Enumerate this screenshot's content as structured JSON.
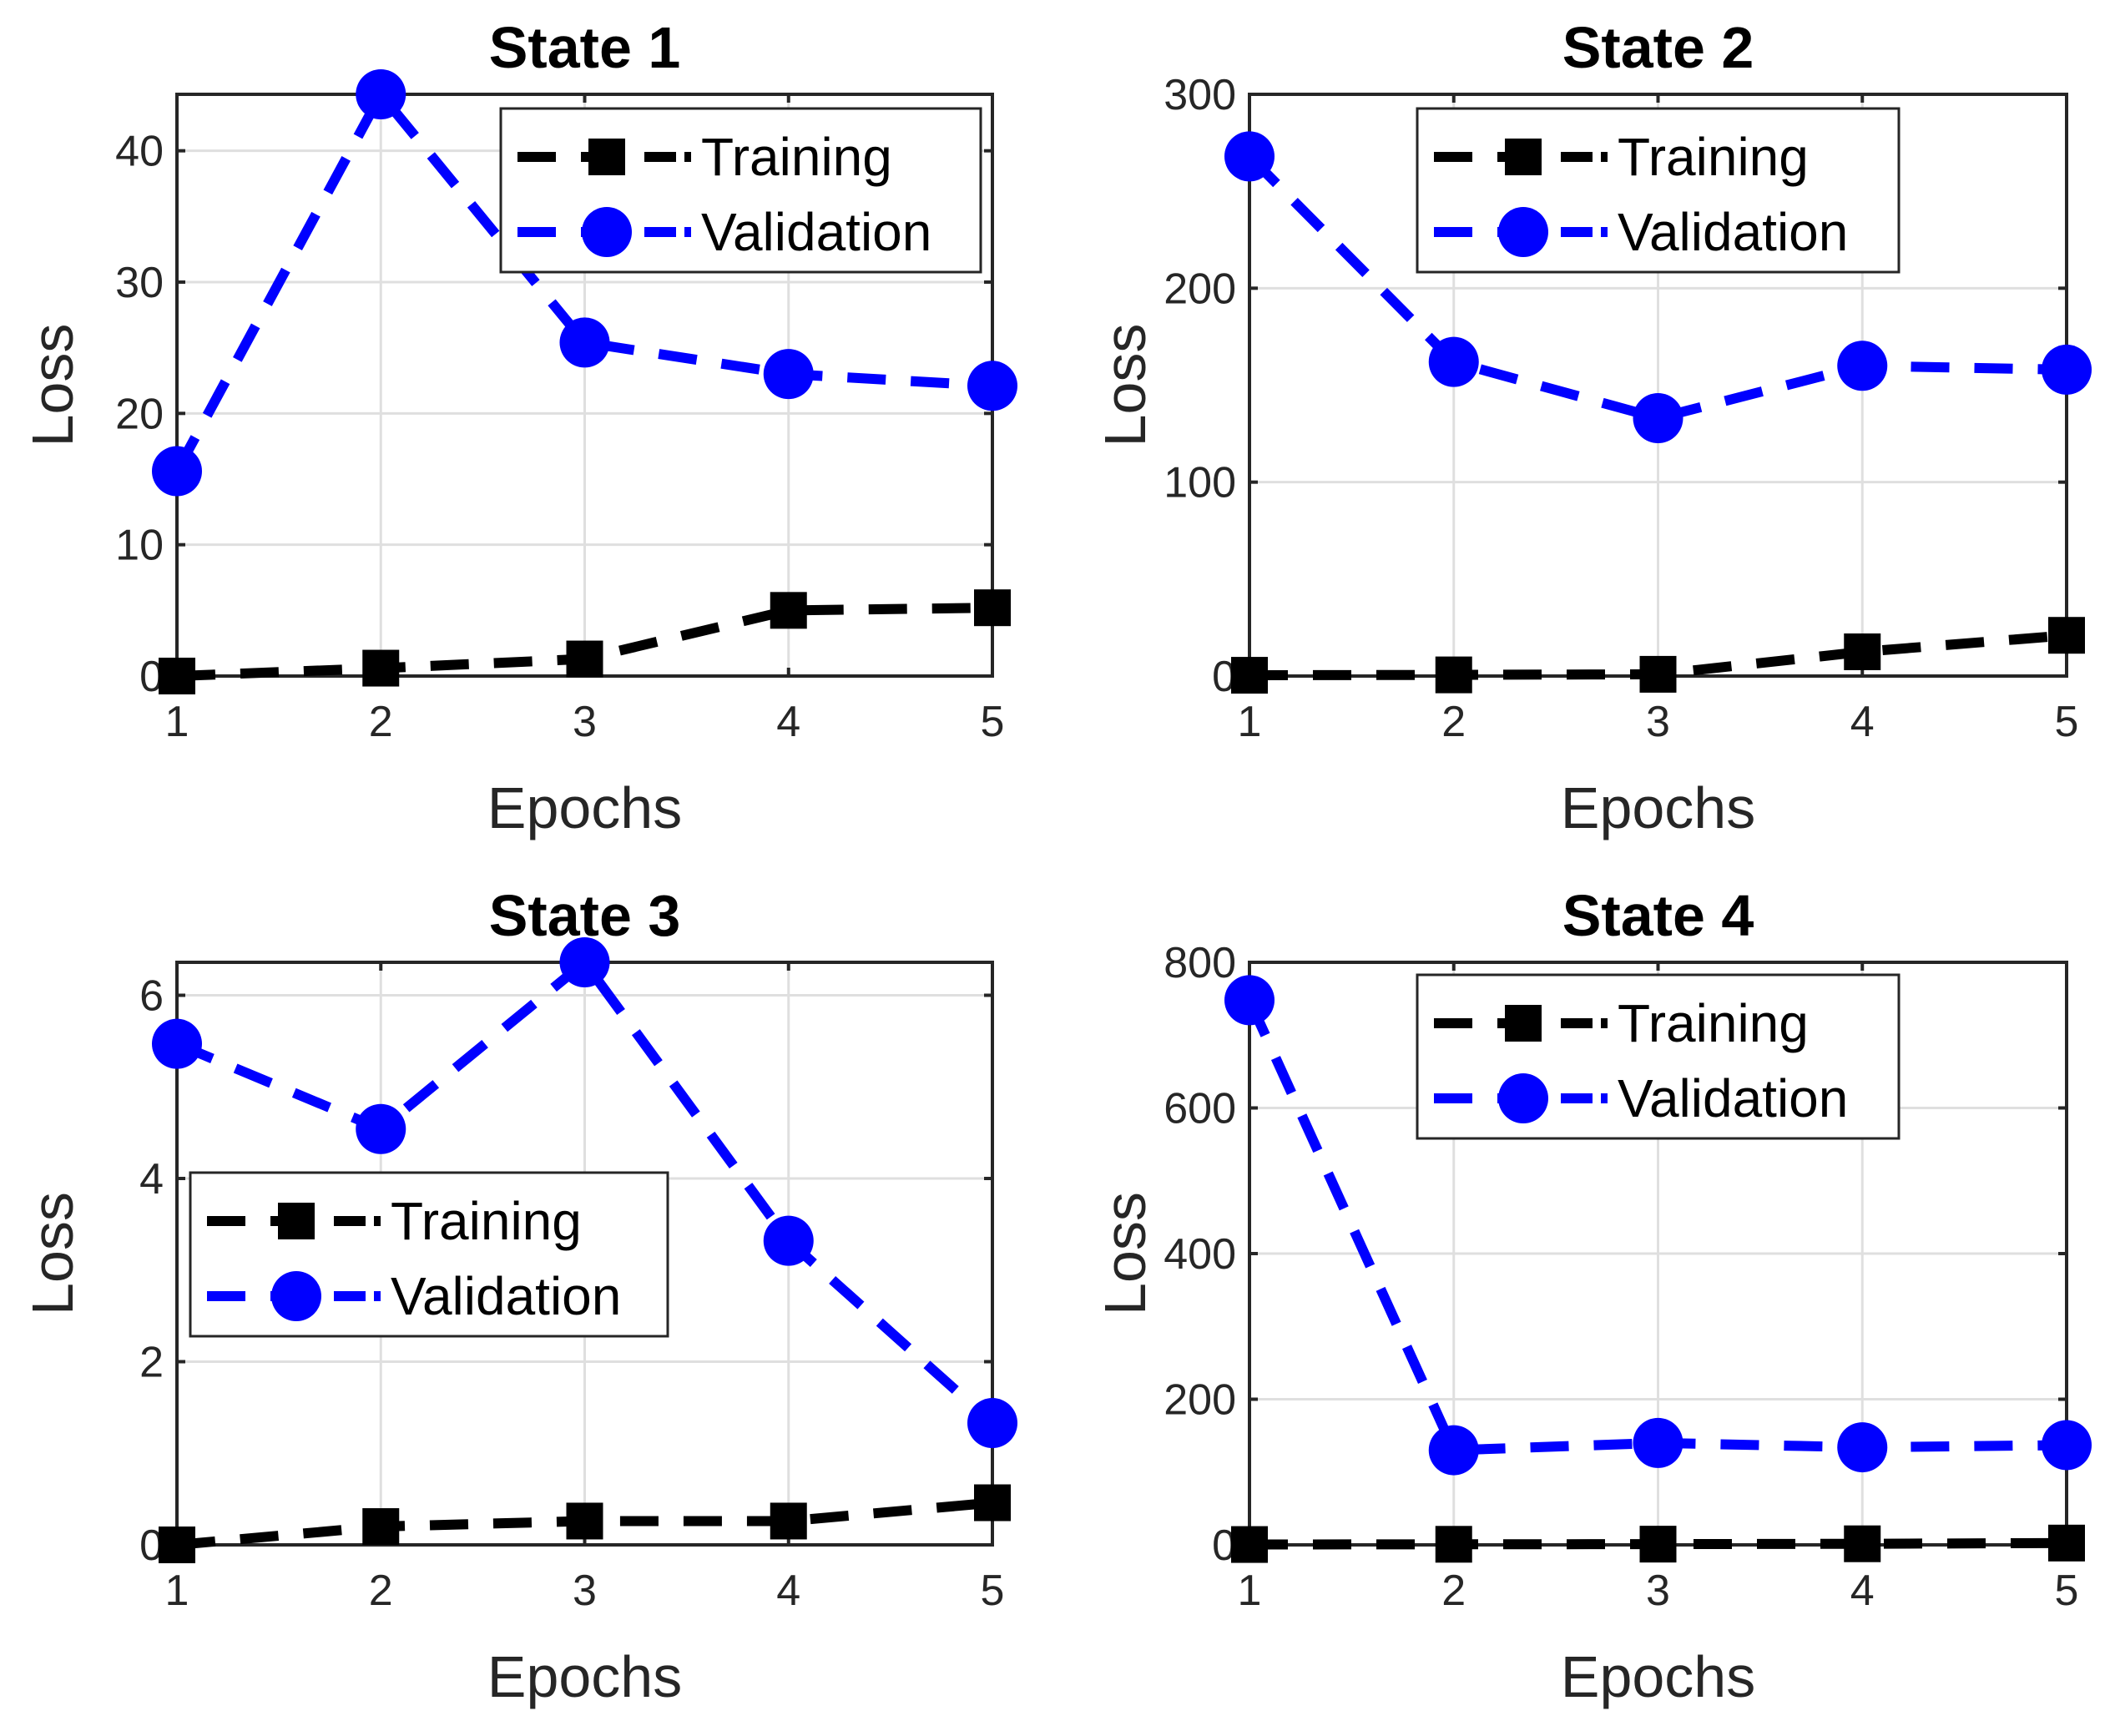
{
  "figure": {
    "panels": [
      "State 1",
      "State 2",
      "State 3",
      "State 4"
    ]
  },
  "chart_data": [
    {
      "type": "line",
      "title": "State 1",
      "xlabel": "Epochs",
      "ylabel": "Loss",
      "x": [
        1,
        2,
        3,
        4,
        5
      ],
      "xlim": [
        1,
        5
      ],
      "ylim": [
        0,
        44.3
      ],
      "xticks": [
        1,
        2,
        3,
        4,
        5
      ],
      "yticks": [
        0,
        10,
        20,
        30,
        40
      ],
      "grid": true,
      "legend_position": "top-right",
      "series": [
        {
          "name": "Training",
          "color": "#000000",
          "marker": "square",
          "values": [
            0.0,
            0.6,
            1.3,
            5.0,
            5.2
          ]
        },
        {
          "name": "Validation",
          "color": "#0000ff",
          "marker": "circle",
          "values": [
            15.6,
            44.3,
            25.4,
            23.0,
            22.1
          ]
        }
      ]
    },
    {
      "type": "line",
      "title": "State 2",
      "xlabel": "Epochs",
      "ylabel": "Loss",
      "x": [
        1,
        2,
        3,
        4,
        5
      ],
      "xlim": [
        1,
        5
      ],
      "ylim": [
        0,
        300
      ],
      "xticks": [
        1,
        2,
        3,
        4,
        5
      ],
      "yticks": [
        0,
        100,
        200,
        300
      ],
      "grid": true,
      "legend_position": "top-right",
      "series": [
        {
          "name": "Training",
          "color": "#000000",
          "marker": "square",
          "values": [
            0.4,
            0.6,
            0.9,
            12.5,
            21.0
          ]
        },
        {
          "name": "Validation",
          "color": "#0000ff",
          "marker": "circle",
          "values": [
            268,
            162,
            133,
            160,
            158
          ]
        }
      ]
    },
    {
      "type": "line",
      "title": "State 3",
      "xlabel": "Epochs",
      "ylabel": "Loss",
      "x": [
        1,
        2,
        3,
        4,
        5
      ],
      "xlim": [
        1,
        5
      ],
      "ylim": [
        0,
        6.36
      ],
      "xticks": [
        1,
        2,
        3,
        4,
        5
      ],
      "yticks": [
        0,
        2,
        4,
        6
      ],
      "grid": true,
      "legend_position": "left",
      "series": [
        {
          "name": "Training",
          "color": "#000000",
          "marker": "square",
          "values": [
            0.0,
            0.2,
            0.26,
            0.26,
            0.46
          ]
        },
        {
          "name": "Validation",
          "color": "#0000ff",
          "marker": "circle",
          "values": [
            5.47,
            4.54,
            6.36,
            3.32,
            1.33
          ]
        }
      ]
    },
    {
      "type": "line",
      "title": "State 4",
      "xlabel": "Epochs",
      "ylabel": "Loss",
      "x": [
        1,
        2,
        3,
        4,
        5
      ],
      "xlim": [
        1,
        5
      ],
      "ylim": [
        0,
        800
      ],
      "xticks": [
        1,
        2,
        3,
        4,
        5
      ],
      "yticks": [
        0,
        200,
        400,
        600,
        800
      ],
      "grid": true,
      "legend_position": "top-right",
      "series": [
        {
          "name": "Training",
          "color": "#000000",
          "marker": "square",
          "values": [
            0.5,
            0.8,
            1.0,
            1.5,
            2.5
          ]
        },
        {
          "name": "Validation",
          "color": "#0000ff",
          "marker": "circle",
          "values": [
            748,
            130,
            140,
            134,
            137
          ]
        }
      ]
    }
  ]
}
